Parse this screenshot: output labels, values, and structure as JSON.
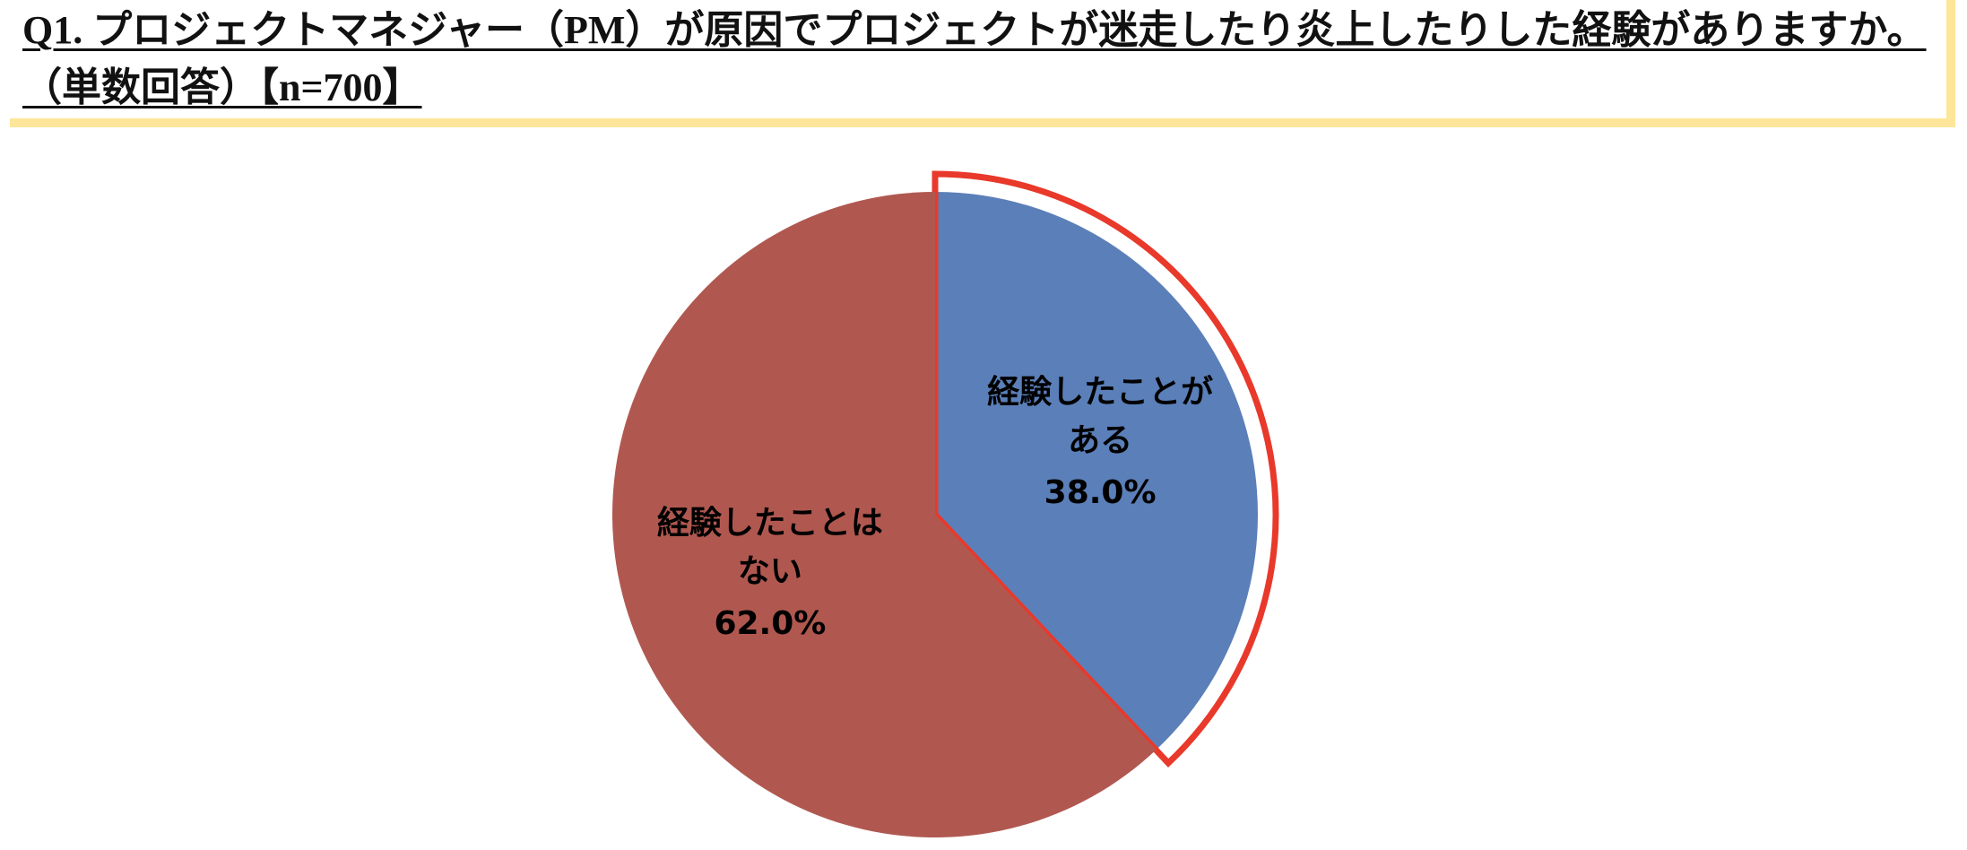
{
  "chart_data": {
    "type": "pie",
    "title": "Q1. プロジェクトマネジャー（PM）が原因でプロジェクトが迷走したり炎上したりした経験がありますか。（単数回答）【n=700】",
    "categories": [
      "経験したことがある",
      "経験したことはない"
    ],
    "values": [
      38,
      62
    ],
    "value_labels": [
      "38.0%",
      "62.0%"
    ],
    "colors": [
      "#5b7fb8",
      "#b05850"
    ]
  }
}
